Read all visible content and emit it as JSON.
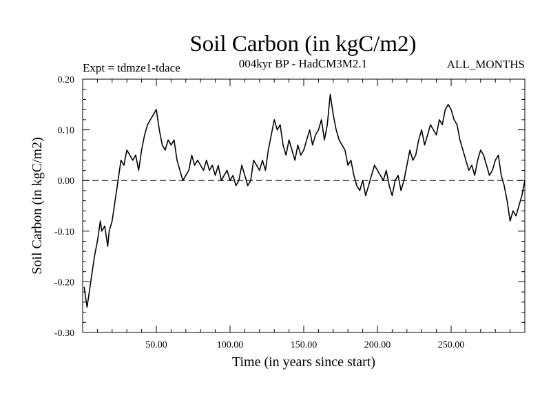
{
  "chart_data": {
    "type": "line",
    "title": "Soil Carbon (in kgC/m2)",
    "subtitle_left": "Expt = tdmze1-tdace",
    "subtitle_center": "004kyr BP - HadCM3M2.1",
    "subtitle_right": "ALL_MONTHS",
    "xlabel": "Time (in years since start)",
    "ylabel": "Soil Carbon (in kgC/m2)",
    "xlim": [
      0,
      300
    ],
    "ylim": [
      -0.3,
      0.2
    ],
    "xticks": [
      50,
      100,
      150,
      200,
      250
    ],
    "xtick_labels": [
      "50.00",
      "100.00",
      "150.00",
      "200.00",
      "250.00"
    ],
    "yticks": [
      -0.3,
      -0.2,
      -0.1,
      0.0,
      0.1,
      0.2
    ],
    "ytick_labels": [
      "-0.30",
      "-0.20",
      "-0.10",
      "0.00",
      "0.10",
      "0.20"
    ],
    "reference_line": 0.0,
    "grid": false,
    "line_color": "#000000",
    "series": [
      {
        "x": [
          1,
          3,
          5,
          8,
          10,
          12,
          13,
          15,
          17,
          18,
          20,
          22,
          24,
          26,
          28,
          30,
          32,
          34,
          36,
          38,
          40,
          42,
          44,
          46,
          48,
          50,
          52,
          54,
          56,
          58,
          60,
          62,
          64,
          66,
          68,
          70,
          72,
          74,
          76,
          78,
          80,
          82,
          84,
          86,
          88,
          90,
          92,
          94,
          96,
          98,
          100,
          102,
          104,
          106,
          108,
          110,
          112,
          114,
          116,
          118,
          120,
          122,
          124,
          126,
          128,
          130,
          132,
          134,
          136,
          138,
          140,
          142,
          144,
          146,
          148,
          150,
          152,
          154,
          156,
          158,
          160,
          162,
          164,
          166,
          168,
          170,
          172,
          174,
          176,
          178,
          180,
          182,
          184,
          186,
          188,
          190,
          192,
          194,
          196,
          198,
          200,
          202,
          204,
          206,
          208,
          210,
          212,
          214,
          216,
          218,
          220,
          222,
          224,
          226,
          228,
          230,
          232,
          234,
          236,
          238,
          240,
          242,
          244,
          246,
          248,
          250,
          252,
          254,
          256,
          258,
          260,
          262,
          264,
          266,
          268,
          270,
          272,
          274,
          276,
          278,
          280,
          282,
          284,
          286,
          288,
          290,
          292,
          294,
          296,
          298,
          300
        ],
        "values": [
          -0.21,
          -0.25,
          -0.21,
          -0.15,
          -0.12,
          -0.08,
          -0.1,
          -0.09,
          -0.13,
          -0.1,
          -0.08,
          -0.04,
          0.0,
          0.04,
          0.03,
          0.06,
          0.05,
          0.04,
          0.05,
          0.02,
          0.06,
          0.09,
          0.11,
          0.12,
          0.13,
          0.14,
          0.1,
          0.07,
          0.06,
          0.08,
          0.07,
          0.08,
          0.04,
          0.02,
          0.0,
          0.01,
          0.02,
          0.05,
          0.03,
          0.04,
          0.03,
          0.02,
          0.04,
          0.02,
          0.03,
          0.01,
          0.03,
          0.0,
          0.01,
          0.02,
          0.0,
          0.01,
          -0.01,
          0.0,
          0.03,
          0.01,
          -0.01,
          0.0,
          0.04,
          0.03,
          0.02,
          0.04,
          0.02,
          0.06,
          0.09,
          0.12,
          0.1,
          0.11,
          0.07,
          0.05,
          0.08,
          0.06,
          0.04,
          0.07,
          0.05,
          0.06,
          0.08,
          0.1,
          0.07,
          0.09,
          0.1,
          0.12,
          0.08,
          0.11,
          0.17,
          0.13,
          0.1,
          0.08,
          0.07,
          0.06,
          0.03,
          0.04,
          0.01,
          -0.01,
          -0.02,
          0.0,
          -0.03,
          -0.01,
          0.01,
          0.03,
          0.02,
          0.01,
          0.0,
          0.02,
          -0.01,
          -0.03,
          0.0,
          0.01,
          -0.02,
          0.0,
          0.03,
          0.06,
          0.04,
          0.05,
          0.08,
          0.1,
          0.07,
          0.09,
          0.11,
          0.1,
          0.09,
          0.12,
          0.11,
          0.14,
          0.15,
          0.14,
          0.12,
          0.11,
          0.08,
          0.06,
          0.04,
          0.02,
          0.03,
          0.01,
          0.04,
          0.06,
          0.05,
          0.03,
          0.01,
          0.02,
          0.04,
          0.05,
          0.01,
          -0.01,
          -0.04,
          -0.08,
          -0.06,
          -0.07,
          -0.05,
          -0.03,
          0.0
        ]
      }
    ]
  }
}
